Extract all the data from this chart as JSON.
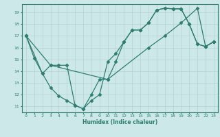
{
  "xlabel": "Humidex (Indice chaleur)",
  "bg_color": "#cce8e8",
  "line_color": "#2e7d6e",
  "grid_color": "#b0cccc",
  "xlim": [
    -0.5,
    23.5
  ],
  "ylim": [
    10.5,
    19.7
  ],
  "yticks": [
    11,
    12,
    13,
    14,
    15,
    16,
    17,
    18,
    19
  ],
  "xticks": [
    0,
    1,
    2,
    3,
    4,
    5,
    6,
    7,
    8,
    9,
    10,
    11,
    12,
    13,
    14,
    15,
    16,
    17,
    18,
    19,
    20,
    21,
    22,
    23
  ],
  "line1_x": [
    0,
    1,
    2,
    3,
    4,
    5,
    6,
    7,
    8,
    9,
    10,
    11,
    12,
    13,
    14,
    15,
    16,
    17,
    18,
    19,
    20,
    21,
    22,
    23
  ],
  "line1_y": [
    17.0,
    15.1,
    13.8,
    12.6,
    11.9,
    11.5,
    11.1,
    10.8,
    11.5,
    12.0,
    14.8,
    15.5,
    16.5,
    17.5,
    17.5,
    18.1,
    19.2,
    19.35,
    19.3,
    19.3,
    18.0,
    16.3,
    16.1,
    16.5
  ],
  "line2_x": [
    0,
    2,
    3,
    4,
    5,
    6,
    7,
    8,
    9,
    10,
    11,
    12,
    13,
    14,
    15,
    16,
    17,
    18,
    19,
    20,
    21,
    22,
    23
  ],
  "line2_y": [
    17.0,
    13.8,
    14.5,
    14.5,
    14.5,
    11.1,
    10.8,
    12.0,
    13.3,
    13.3,
    14.8,
    16.5,
    17.5,
    17.5,
    18.1,
    19.2,
    19.35,
    19.3,
    19.3,
    18.0,
    16.3,
    16.1,
    16.5
  ],
  "line3_x": [
    0,
    3,
    10,
    15,
    17,
    19,
    21,
    22,
    23
  ],
  "line3_y": [
    17.0,
    14.5,
    13.3,
    16.0,
    17.0,
    18.1,
    19.35,
    16.1,
    16.5
  ]
}
